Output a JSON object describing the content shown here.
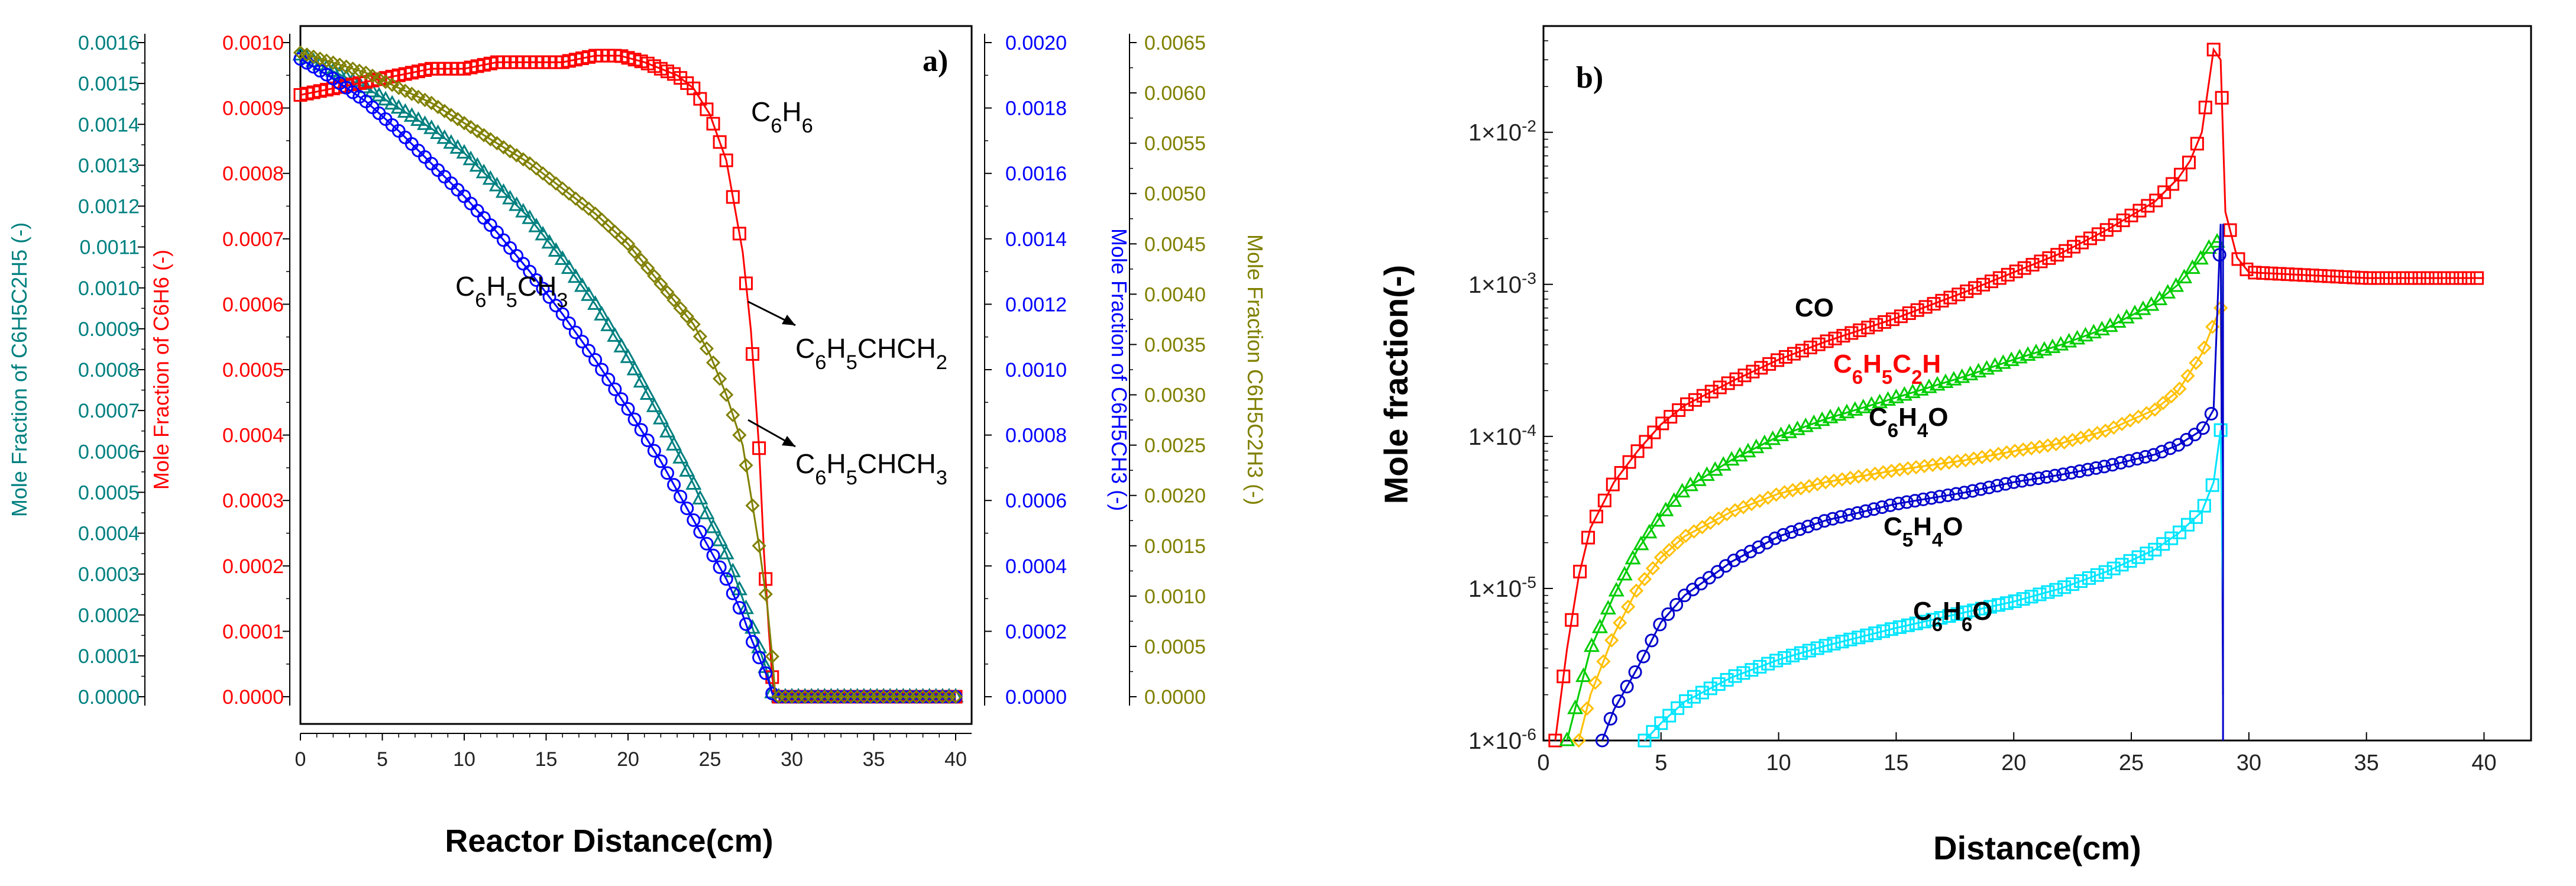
{
  "panels": [
    {
      "id": "a",
      "panel_label": "a)",
      "xlabel": "Reactor Distance(cm)",
      "x_ticks": [
        "0",
        "5",
        "10",
        "15",
        "20",
        "25",
        "30",
        "35",
        "40"
      ],
      "axes": [
        {
          "key": "eb",
          "label": "Mole Fraction of C6H5C2H5 (-)",
          "color": "#008080",
          "ticks": [
            "0.0000",
            "0.0001",
            "0.0002",
            "0.0003",
            "0.0004",
            "0.0005",
            "0.0006",
            "0.0007",
            "0.0008",
            "0.0009",
            "0.0010",
            "0.0011",
            "0.0012",
            "0.0013",
            "0.0014",
            "0.0015",
            "0.0016"
          ]
        },
        {
          "key": "bz",
          "label": "Mole Fraction of C6H6 (-)",
          "color": "#ff0000",
          "ticks": [
            "0.0000",
            "0.0001",
            "0.0002",
            "0.0003",
            "0.0004",
            "0.0005",
            "0.0006",
            "0.0007",
            "0.0008",
            "0.0009",
            "0.0010"
          ]
        },
        {
          "key": "tol",
          "label": "Mole Fraction of C6H5CH3 (-)",
          "color": "#0000ff",
          "ticks": [
            "0.0000",
            "0.0002",
            "0.0004",
            "0.0006",
            "0.0008",
            "0.0010",
            "0.0012",
            "0.0014",
            "0.0016",
            "0.0018",
            "0.0020"
          ]
        },
        {
          "key": "sty",
          "label": "Mole Fraction C6H5C2H3 (-)",
          "color": "#808000",
          "ticks": [
            "0.0000",
            "0.0005",
            "0.0010",
            "0.0015",
            "0.0020",
            "0.0025",
            "0.0030",
            "0.0035",
            "0.0040",
            "0.0045",
            "0.0050",
            "0.0055",
            "0.0060",
            "0.0065"
          ]
        }
      ],
      "labels": [
        {
          "id": "c6h6",
          "text": [
            "C",
            "6",
            "H",
            "6"
          ]
        },
        {
          "id": "c6h5ch3",
          "text": [
            "C",
            "6",
            "H",
            "5",
            "CH",
            "3"
          ]
        },
        {
          "id": "c6h5chch2",
          "text": [
            "C",
            "6",
            "H",
            "5",
            "CHCH",
            "2"
          ]
        },
        {
          "id": "c6h5chch3",
          "text": [
            "C",
            "6",
            "H",
            "5",
            "CHCH",
            "3"
          ]
        }
      ]
    },
    {
      "id": "b",
      "panel_label": "b)",
      "xlabel": "Distance(cm)",
      "ylabel": "Mole fraction(-)",
      "x_ticks": [
        "0",
        "5",
        "10",
        "15",
        "20",
        "25",
        "30",
        "35",
        "40"
      ],
      "y_ticks": [
        {
          "base": "1×10",
          "exp": "-2"
        },
        {
          "base": "1×10",
          "exp": "-3"
        },
        {
          "base": "1×10",
          "exp": "-4"
        },
        {
          "base": "1×10",
          "exp": "-5"
        },
        {
          "base": "1×10",
          "exp": "-6"
        }
      ],
      "labels": [
        {
          "id": "co",
          "text": [
            "CO"
          ],
          "color": "#000000"
        },
        {
          "id": "c6h5c2h",
          "text": [
            "C",
            "6",
            "H",
            "5",
            "C",
            "2",
            "H"
          ],
          "color": "#ff0000"
        },
        {
          "id": "c6h4o",
          "text": [
            "C",
            "6",
            "H",
            "4",
            "O"
          ],
          "color": "#000000"
        },
        {
          "id": "c5h4o",
          "text": [
            "C",
            "5",
            "H",
            "4",
            "O"
          ],
          "color": "#000000"
        },
        {
          "id": "c6h6o",
          "text": [
            "C",
            "6",
            "H",
            "6",
            "O"
          ],
          "color": "#000000"
        }
      ]
    }
  ],
  "chart_data": [
    {
      "type": "line",
      "title": "a)",
      "xlabel": "Reactor Distance(cm)",
      "xlim": [
        0,
        40
      ],
      "series": [
        {
          "name": "C6H5C2H5",
          "axis": "Mole Fraction of C6H5C2H5 (-)",
          "ylim": [
            0,
            0.0016
          ],
          "color": "#008080",
          "marker": "triangle",
          "x": [
            0,
            2,
            4,
            6,
            8,
            10,
            12,
            14,
            16,
            18,
            20,
            22,
            24,
            25,
            26,
            27,
            27.5,
            28,
            28.5,
            28.8,
            29,
            40
          ],
          "y": [
            0.00157,
            0.00153,
            0.00149,
            0.00144,
            0.00139,
            0.00133,
            0.00125,
            0.00117,
            0.00107,
            0.00096,
            0.00083,
            0.00068,
            0.00052,
            0.00043,
            0.00035,
            0.00024,
            0.00018,
            0.00012,
            6e-05,
            1e-05,
            0.0,
            0.0
          ]
        },
        {
          "name": "C6H6",
          "axis": "Mole Fraction of C6H6 (-)",
          "ylim": [
            0,
            0.001
          ],
          "color": "#ff0000",
          "marker": "square",
          "x": [
            0,
            2,
            4,
            6,
            8,
            10,
            12,
            14,
            16,
            18,
            19.5,
            21,
            22,
            23,
            24,
            25,
            26,
            27,
            27.5,
            28,
            28.3,
            28.6,
            28.8,
            29,
            40
          ],
          "y": [
            0.00092,
            0.00093,
            0.00094,
            0.00095,
            0.00096,
            0.00096,
            0.00097,
            0.00097,
            0.00097,
            0.00098,
            0.00098,
            0.00097,
            0.00096,
            0.00095,
            0.00093,
            0.00089,
            0.00082,
            0.00068,
            0.00056,
            0.00038,
            0.00022,
            0.0001,
            3e-05,
            0.0,
            0.0
          ]
        },
        {
          "name": "C6H5CH3",
          "axis": "Mole Fraction of C6H5CH3 (-)",
          "ylim": [
            0,
            0.002
          ],
          "color": "#0000ff",
          "marker": "circle",
          "x": [
            0,
            2,
            4,
            6,
            8,
            10,
            12,
            14,
            16,
            18,
            20,
            22,
            24,
            25,
            26,
            27,
            27.5,
            28,
            28.5,
            28.8,
            29,
            40
          ],
          "y": [
            0.00195,
            0.00189,
            0.00182,
            0.00173,
            0.00163,
            0.00153,
            0.00142,
            0.0013,
            0.00117,
            0.00103,
            0.00088,
            0.00072,
            0.00054,
            0.00045,
            0.00036,
            0.00025,
            0.00018,
            0.00012,
            6e-05,
            1e-05,
            0.0,
            0.0
          ]
        },
        {
          "name": "C6H5C2H3",
          "axis": "Mole Fraction C6H5C2H3 (-)",
          "ylim": [
            0,
            0.0065
          ],
          "color": "#808000",
          "marker": "diamond",
          "x": [
            0,
            2,
            4,
            6,
            8,
            10,
            12,
            14,
            16,
            18,
            20,
            22,
            24,
            25,
            26,
            27,
            27.5,
            28,
            28.5,
            28.8,
            29,
            40
          ],
          "y": [
            0.0064,
            0.0063,
            0.0062,
            0.00605,
            0.0059,
            0.0057,
            0.0055,
            0.0053,
            0.00505,
            0.0048,
            0.0045,
            0.0041,
            0.0037,
            0.0034,
            0.003,
            0.0025,
            0.002,
            0.0015,
            0.0009,
            0.0004,
            0.0,
            0.0
          ]
        }
      ]
    },
    {
      "type": "line",
      "title": "b)",
      "xlabel": "Distance(cm)",
      "ylabel": "Mole fraction(-)",
      "yscale": "log",
      "xlim": [
        0,
        42
      ],
      "ylim": [
        1e-06,
        0.05
      ],
      "series": [
        {
          "name": "CO",
          "color": "#ff0000",
          "marker": "square",
          "x": [
            0.5,
            1,
            1.5,
            2,
            3,
            4,
            5,
            6,
            8,
            10,
            12,
            15,
            18,
            20,
            22,
            24,
            26,
            27,
            27.5,
            28,
            28.5,
            28.8,
            29,
            29.5,
            30,
            35,
            40
          ],
          "y": [
            1e-06,
            4e-06,
            1.2e-05,
            2.5e-05,
            5e-05,
            8e-05,
            0.00012,
            0.00016,
            0.00023,
            0.00032,
            0.00042,
            0.0006,
            0.0009,
            0.0012,
            0.0016,
            0.0023,
            0.0035,
            0.005,
            0.0065,
            0.01,
            0.035,
            0.03,
            0.003,
            0.0015,
            0.0012,
            0.0011,
            0.0011
          ]
        },
        {
          "name": "C6H5C2H",
          "color": "#00cc00",
          "marker": "triangle",
          "x": [
            1,
            1.5,
            2,
            3,
            4,
            5,
            6,
            8,
            10,
            12,
            15,
            18,
            20,
            22,
            24,
            26,
            27,
            28,
            28.5,
            28.8,
            28.9
          ],
          "y": [
            1e-06,
            2e-06,
            4e-06,
            9e-06,
            1.8e-05,
            3e-05,
            4.5e-05,
            7e-05,
            0.0001,
            0.00013,
            0.00018,
            0.00025,
            0.00032,
            0.0004,
            0.00052,
            0.00075,
            0.001,
            0.0015,
            0.0019,
            0.0019,
            3e-05
          ]
        },
        {
          "name": "C6H4O",
          "color": "#ffc000",
          "marker": "diamond",
          "x": [
            1.5,
            2,
            3,
            4,
            5,
            6,
            8,
            10,
            12,
            15,
            18,
            20,
            22,
            24,
            26,
            27,
            28,
            28.5,
            28.8,
            28.9
          ],
          "y": [
            1e-06,
            2e-06,
            5e-06,
            1e-05,
            1.6e-05,
            2.2e-05,
            3.2e-05,
            4.2e-05,
            5e-05,
            6e-05,
            7e-05,
            8e-05,
            9e-05,
            0.00011,
            0.00015,
            0.0002,
            0.00035,
            0.00055,
            0.0007,
            1.5e-05
          ]
        },
        {
          "name": "C5H4O",
          "color": "#0000cc",
          "marker": "circle",
          "x": [
            2.5,
            3,
            4,
            5,
            6,
            8,
            10,
            12,
            15,
            18,
            20,
            22,
            24,
            26,
            27,
            28,
            28.5,
            28.8,
            28.9
          ],
          "y": [
            1e-06,
            1.6e-06,
            3e-06,
            6e-06,
            9e-06,
            1.5e-05,
            2.2e-05,
            2.8e-05,
            3.6e-05,
            4.3e-05,
            5e-05,
            5.6e-05,
            6.4e-05,
            7.6e-05,
            8.8e-05,
            0.00011,
            0.00015,
            0.0025,
            2e-06
          ]
        },
        {
          "name": "C6H6O",
          "color": "#00e5ff",
          "marker": "square",
          "x": [
            4.3,
            5,
            6,
            8,
            10,
            12,
            15,
            18,
            20,
            22,
            24,
            26,
            27,
            28,
            28.5,
            28.8,
            28.9
          ],
          "y": [
            1e-06,
            1.3e-06,
            1.8e-06,
            2.6e-06,
            3.4e-06,
            4.2e-06,
            5.5e-06,
            7e-06,
            8.2e-06,
            1e-05,
            1.3e-05,
            1.8e-05,
            2.3e-05,
            3.2e-05,
            5e-05,
            0.00011,
            8e-06
          ]
        }
      ]
    }
  ]
}
